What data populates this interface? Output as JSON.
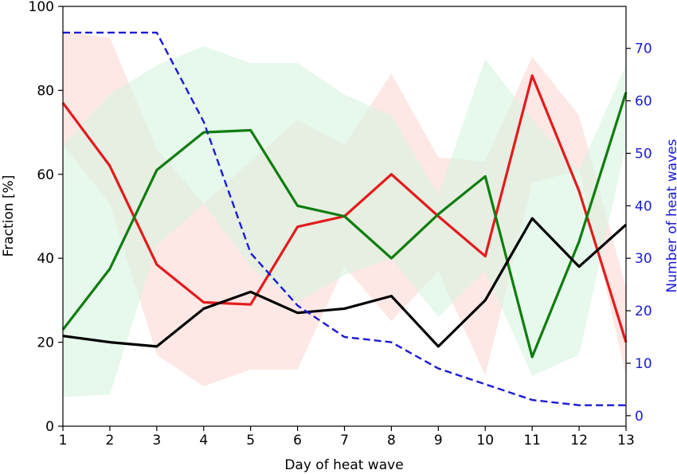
{
  "chart_data": {
    "type": "line",
    "title": "",
    "xlabel": "Day of heat wave",
    "ylabel": "Fraction [%]",
    "y2label": "Number of heat waves",
    "xlim": [
      1,
      13
    ],
    "ylim": [
      0,
      100
    ],
    "y2lim": [
      -2,
      78
    ],
    "x": [
      1,
      2,
      3,
      4,
      5,
      6,
      7,
      8,
      9,
      10,
      11,
      12,
      13
    ],
    "x_ticks": [
      "1",
      "2",
      "3",
      "4",
      "5",
      "6",
      "7",
      "8",
      "9",
      "10",
      "11",
      "12",
      "13"
    ],
    "y_ticks": [
      "0",
      "20",
      "40",
      "60",
      "80",
      "100"
    ],
    "y2_ticks": [
      "0",
      "10",
      "20",
      "30",
      "40",
      "50",
      "60",
      "70"
    ],
    "grid": false,
    "series": [
      {
        "color": "#e41a1c",
        "axis": "left",
        "style": "solid",
        "values": [
          77,
          62,
          38.5,
          29.5,
          29,
          47.5,
          50,
          60,
          50,
          40.5,
          83.5,
          56,
          20
        ],
        "band": {
          "color": "#fbd8d3",
          "upper": [
            94,
            92.5,
            66,
            53,
            63,
            73,
            67,
            84,
            64,
            63,
            88,
            74,
            33
          ],
          "lower": [
            67,
            53,
            17,
            9.5,
            13.5,
            13.5,
            38,
            25,
            37,
            12,
            58,
            61,
            12
          ]
        }
      },
      {
        "color": "#0e7d0e",
        "axis": "left",
        "style": "solid",
        "values": [
          23,
          37.5,
          61,
          70,
          70.5,
          52.5,
          50,
          40,
          50.5,
          59.5,
          16.5,
          44,
          79.5
        ],
        "band": {
          "color": "#d7f3e0",
          "upper": [
            67,
            79,
            86,
            90.5,
            86.5,
            86.5,
            79,
            74,
            55,
            87.5,
            73,
            61,
            86
          ],
          "lower": [
            7,
            7.5,
            43,
            53,
            38,
            29.5,
            36,
            40,
            26,
            37,
            12,
            17,
            67
          ]
        }
      },
      {
        "color": "#000000",
        "axis": "left",
        "style": "solid",
        "values": [
          21.5,
          20,
          19,
          28,
          32,
          27,
          28,
          31,
          19,
          30,
          49.5,
          38,
          48
        ]
      },
      {
        "color": "#1a1ad6",
        "axis": "right",
        "style": "dashed",
        "values": [
          73,
          73,
          73,
          56,
          31,
          21,
          15,
          14,
          9,
          6,
          3,
          2,
          2
        ]
      }
    ]
  }
}
